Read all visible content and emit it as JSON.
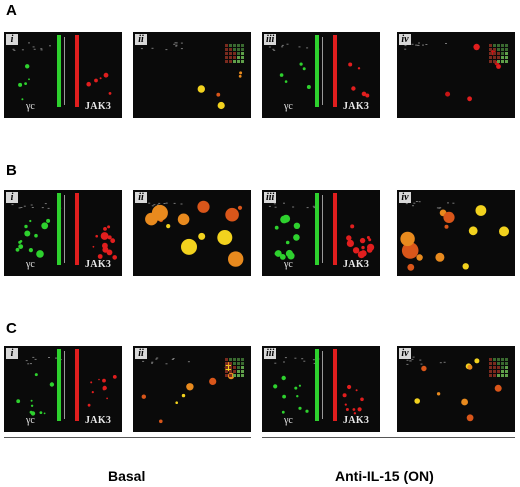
{
  "rows": [
    {
      "label": "A",
      "panels": [
        {
          "roman": "i",
          "type": "split",
          "intensity": "sparse",
          "gamma": "γc",
          "jak": "JAK3"
        },
        {
          "roman": "ii",
          "type": "merge",
          "intensity": "sparse"
        },
        {
          "roman": "iii",
          "type": "split",
          "intensity": "sparse",
          "gamma": "γc",
          "jak": "JAK3"
        },
        {
          "roman": "iv",
          "type": "merge",
          "intensity": "sparse-red"
        }
      ]
    },
    {
      "label": "B",
      "panels": [
        {
          "roman": "i",
          "type": "split",
          "intensity": "dense",
          "gamma": "γc",
          "jak": "JAK3"
        },
        {
          "roman": "ii",
          "type": "merge",
          "intensity": "dense"
        },
        {
          "roman": "iii",
          "type": "split",
          "intensity": "dense",
          "gamma": "γc",
          "jak": "JAK3"
        },
        {
          "roman": "iv",
          "type": "merge",
          "intensity": "dense"
        }
      ]
    },
    {
      "label": "C",
      "panels": [
        {
          "roman": "i",
          "type": "split",
          "intensity": "medium",
          "gamma": "γc",
          "jak": "JAK3"
        },
        {
          "roman": "ii",
          "type": "merge",
          "intensity": "medium"
        },
        {
          "roman": "iii",
          "type": "split",
          "intensity": "medium",
          "gamma": "γc",
          "jak": "JAK3"
        },
        {
          "roman": "iv",
          "type": "merge",
          "intensity": "medium"
        }
      ]
    }
  ],
  "conditions": {
    "left": "Basal",
    "right": "Anti-IL-15 (ON)"
  },
  "colors": {
    "green": "#2ed12e",
    "red": "#e11e1e",
    "yellow": "#f2d21e",
    "orange": "#e88a1e",
    "panel_bg": "#0a0a0a"
  }
}
